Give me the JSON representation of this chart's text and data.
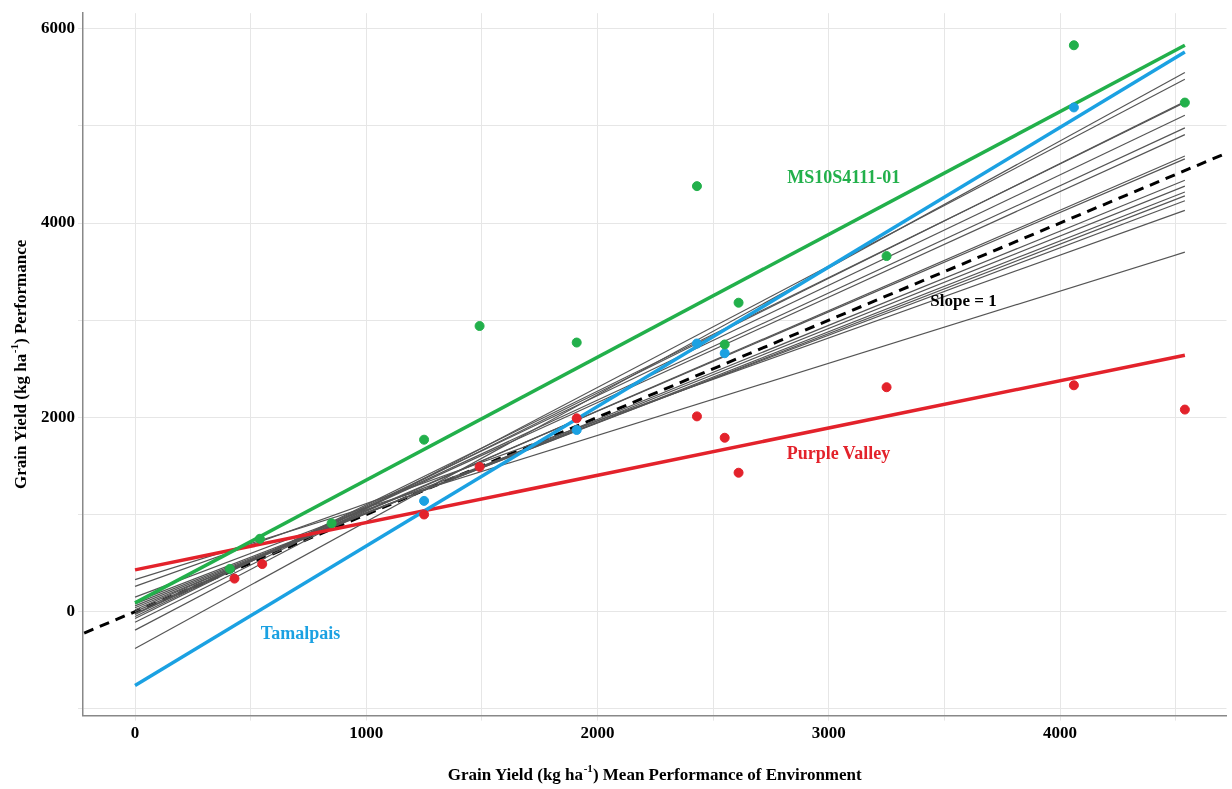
{
  "chart_data": {
    "type": "line",
    "xlabel": "Grain Yield (kg ha$^{-1}$) Mean Performance of Environment",
    "ylabel": "Grain Yield (kg ha$^{-1}$) Performance",
    "xlim": [
      -225,
      4720
    ],
    "ylim": [
      -1070,
      6160
    ],
    "xticks": [
      0,
      {
        "value": 500,
        "label": null
      },
      1000,
      {
        "value": 1500,
        "label": null
      },
      2000,
      {
        "value": 2500,
        "label": null
      },
      3000,
      {
        "value": 3500,
        "label": null
      },
      4000,
      {
        "value": 4500,
        "label": null
      }
    ],
    "yticks": [
      {
        "value": -1000,
        "label": null
      },
      0,
      {
        "value": 1000,
        "label": null
      },
      2000,
      {
        "value": 3000,
        "label": null
      },
      4000,
      {
        "value": 5000,
        "label": null
      },
      6000
    ],
    "grid": true,
    "annotations": [
      "Slope = 1"
    ],
    "series": [
      {
        "name": "MS10S4111-01",
        "type": "line",
        "color": "#22b04b",
        "x": [
          0,
          4540
        ],
        "values": [
          90,
          5830
        ]
      },
      {
        "name": "Tamalpais",
        "type": "line",
        "color": "#1ba1e2",
        "x": [
          0,
          4540
        ],
        "values": [
          -760,
          5760
        ]
      },
      {
        "name": "Purple Valley",
        "type": "line",
        "color": "#e3222b",
        "x": [
          0,
          4540
        ],
        "values": [
          430,
          2640
        ]
      },
      {
        "type": "line",
        "color": "#555555",
        "x": [
          0,
          4540
        ],
        "values": [
          330,
          3700
        ]
      },
      {
        "type": "line",
        "color": "#555555",
        "x": [
          0,
          4540
        ],
        "values": [
          260,
          4130
        ]
      },
      {
        "type": "line",
        "color": "#555555",
        "x": [
          0,
          4540
        ],
        "values": [
          150,
          4230
        ]
      },
      {
        "type": "line",
        "color": "#555555",
        "x": [
          0,
          4540
        ],
        "values": [
          100,
          4280
        ]
      },
      {
        "type": "line",
        "color": "#555555",
        "x": [
          0,
          4540
        ],
        "values": [
          80,
          4320
        ]
      },
      {
        "type": "line",
        "color": "#555555",
        "x": [
          0,
          4540
        ],
        "values": [
          60,
          4380
        ]
      },
      {
        "type": "line",
        "color": "#555555",
        "x": [
          0,
          4540
        ],
        "values": [
          40,
          4440
        ]
      },
      {
        "type": "line",
        "color": "#555555",
        "x": [
          0,
          4540
        ],
        "values": [
          20,
          4660
        ]
      },
      {
        "type": "line",
        "color": "#555555",
        "x": [
          0,
          4540
        ],
        "values": [
          0,
          4690
        ]
      },
      {
        "type": "line",
        "color": "#555555",
        "x": [
          0,
          4540
        ],
        "values": [
          -20,
          4910
        ]
      },
      {
        "type": "line",
        "color": "#555555",
        "x": [
          0,
          4540
        ],
        "values": [
          -30,
          4980
        ]
      },
      {
        "type": "line",
        "color": "#555555",
        "x": [
          0,
          4540
        ],
        "values": [
          -50,
          5110
        ]
      },
      {
        "type": "line",
        "color": "#555555",
        "x": [
          0,
          4540
        ],
        "values": [
          -70,
          5240
        ]
      },
      {
        "type": "line",
        "color": "#555555",
        "x": [
          0,
          4540
        ],
        "values": [
          -110,
          5250
        ]
      },
      {
        "type": "line",
        "color": "#555555",
        "x": [
          0,
          4540
        ],
        "values": [
          -190,
          5480
        ]
      },
      {
        "type": "line",
        "color": "#555555",
        "x": [
          0,
          4540
        ],
        "values": [
          -380,
          5550
        ]
      },
      {
        "type": "line",
        "color": "#000000",
        "line_style": "dashed",
        "x": [
          -220,
          4720
        ],
        "values": [
          -220,
          4720
        ]
      },
      {
        "type": "scatter",
        "color": "#22b04b",
        "x": [
          410,
          540,
          850,
          1250,
          1490,
          1910,
          2430,
          2550,
          2610,
          3250,
          4060,
          4540
        ],
        "values": [
          440,
          750,
          910,
          1770,
          2940,
          2770,
          4380,
          2750,
          3180,
          3660,
          5830,
          5240
        ]
      },
      {
        "type": "scatter",
        "color": "#e3222b",
        "x": [
          430,
          550,
          1250,
          1490,
          1910,
          2430,
          2550,
          2610,
          3250,
          4060,
          4540
        ],
        "values": [
          340,
          490,
          1000,
          1490,
          1990,
          2010,
          1790,
          1430,
          2310,
          2330,
          2080
        ]
      },
      {
        "type": "scatter",
        "color": "#1ba1e2",
        "x": [
          1250,
          1910,
          2430,
          2550,
          4060
        ],
        "values": [
          1140,
          1870,
          2760,
          2660,
          5190
        ]
      }
    ]
  }
}
